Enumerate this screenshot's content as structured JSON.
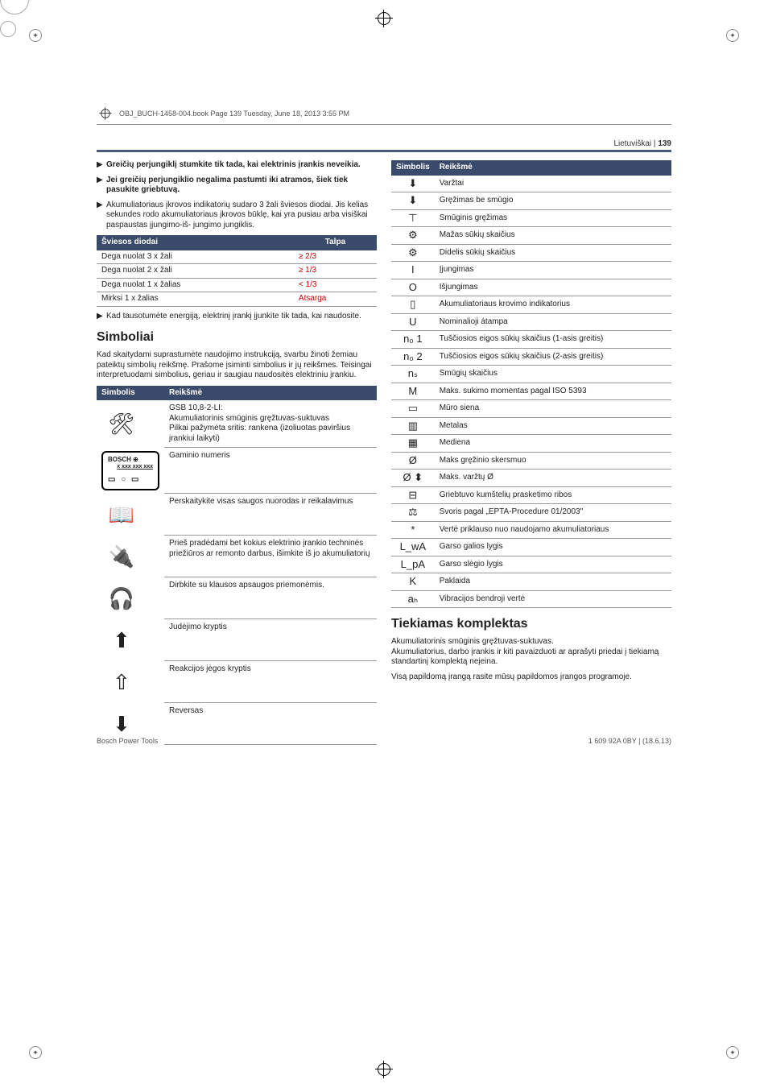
{
  "objLine": "OBJ_BUCH-1458-004.book  Page 139  Tuesday, June 18, 2013  3:55 PM",
  "header": {
    "lang": "Lietuviškai",
    "page": "139"
  },
  "left": {
    "bullets": [
      "Greičių perjungiklį stumkite tik tada, kai elektrinis įrankis neveikia.",
      "Jei greičių perjungiklio negalima pastumti iki atramos, šiek tiek pasukite griebtuvą."
    ],
    "par1": "Akumuliatoriaus įkrovos indikatorių sudaro 3 žali šviesos diodai. Jis kelias sekundes rodo akumuliatoriaus įkrovos būklę, kai yra pusiau arba visiškai paspaustas įjungimo-iš- jungimo jungiklis.",
    "ledTable": {
      "h1": "Šviesos diodai",
      "h2": "Talpa",
      "rows": [
        [
          "Dega nuolat 3 x žali",
          "≥ 2/3"
        ],
        [
          "Dega nuolat 2 x žali",
          "≥ 1/3"
        ],
        [
          "Dega nuolat 1 x žalias",
          "< 1/3"
        ],
        [
          "Mirksi 1 x žalias",
          "Atsarga"
        ]
      ]
    },
    "par2": "Kad tausotumėte energiją, elektrinį įrankį įjunkite tik tada, kai naudosite.",
    "h2": "Simboliai",
    "par3": "Kad skaitydami suprastumėte naudojimo instrukciją, svarbu žinoti žemiau pateiktų simbolių reikšmę. Prašome įsiminti simbolius ir jų reikšmes. Teisingai interpretuodami simbolius, geriau ir saugiau naudositės elektriniu įrankiu.",
    "symTable": {
      "h1": "Simbolis",
      "h2": "Reikšmė",
      "rows": [
        {
          "iconType": "drill",
          "text": "GSB 10,8-2-LI:\nAkumuliatorinis smūginis gręžtuvas-suktuvas\nPilkai pažymėta sritis: rankena (izoliuotas paviršius įrankiui laikyti)"
        },
        {
          "iconType": "bosch",
          "text": "Gaminio numeris"
        },
        {
          "iconType": "manual",
          "text": "Perskaitykite visas saugos nuorodas ir reikalavimus"
        },
        {
          "iconType": "plug",
          "text": "Prieš pradėdami bet kokius elektrinio įrankio techninės priežiūros ar remonto darbus, išimkite iš jo akumuliatorių"
        },
        {
          "iconType": "ear",
          "text": "Dirbkite su klausos apsaugos priemonėmis."
        },
        {
          "iconType": "arrow-up",
          "text": "Judėjimo kryptis"
        },
        {
          "iconType": "arrow-down",
          "text": "Reakcijos jėgos kryptis"
        },
        {
          "iconType": "y-arrow",
          "text": "Reversas"
        }
      ]
    }
  },
  "right": {
    "symTable": {
      "h1": "Simbolis",
      "h2": "Reikšmė",
      "rows": [
        {
          "icon": "⬇",
          "text": "Varžtai"
        },
        {
          "icon": "⬇",
          "text": "Gręžimas be smūgio"
        },
        {
          "icon": "⊤",
          "text": "Smūginis gręžimas"
        },
        {
          "icon": "⚙",
          "text": "Mažas sūkių skaičius"
        },
        {
          "icon": "⚙",
          "text": "Didelis sūkių skaičius"
        },
        {
          "icon": "I",
          "text": "Įjungimas"
        },
        {
          "icon": "O",
          "text": "Išjungimas"
        },
        {
          "icon": "▯",
          "text": "Akumuliatoriaus krovimo indikatorius"
        },
        {
          "icon": "U",
          "text": "Nominalioji átampa"
        },
        {
          "icon": "n₀ 1",
          "text": "Tuščiosios eigos sūkių skaičius (1-asis greitis)"
        },
        {
          "icon": "n₀ 2",
          "text": "Tuščiosios eigos sūkių skaičius (2-asis greitis)"
        },
        {
          "icon": "nₛ",
          "text": "Smūgių skaičius"
        },
        {
          "icon": "M",
          "text": "Maks. sukimo momentas pagal ISO 5393"
        },
        {
          "icon": "▭",
          "text": "Mūro siena"
        },
        {
          "icon": "▥",
          "text": "Metalas"
        },
        {
          "icon": "▦",
          "text": "Mediena"
        },
        {
          "icon": "Ø",
          "text": "Maks gręžinio skersmuo"
        },
        {
          "icon": "Ø ⬍",
          "text": "Maks. varžtų Ø"
        },
        {
          "icon": "⊟",
          "text": "Griebtuvo kumštelių prasketimo ribos"
        },
        {
          "icon": "⚖",
          "text": "Svoris pagal „EPTA-Procedure 01/2003\""
        },
        {
          "icon": "*",
          "text": "Vertė priklauso nuo naudojamo akumuliatoriaus"
        },
        {
          "icon": "L_wA",
          "text": "Garso galios lygis"
        },
        {
          "icon": "L_pA",
          "text": "Garso slėgio lygis"
        },
        {
          "icon": "K",
          "text": "Paklaida"
        },
        {
          "icon": "aₕ",
          "text": "Vibracijos bendroji vertė"
        }
      ]
    },
    "h2": "Tiekiamas komplektas",
    "par1": "Akumuliatorinis smūginis gręžtuvas-suktuvas.\nAkumuliatorius, darbo įrankis ir kiti pavaizduoti ar aprašyti priedai į tiekiamą standartinį komplektą neįeina.",
    "par2": "Visą papildomą įrangą rasite mūsų papildomos įrangos programoje."
  },
  "footer": {
    "left": "Bosch Power Tools",
    "right": "1 609 92A 0BY | (18.6.13)"
  },
  "bosch": {
    "brand": "BOSCH",
    "num": "x xxx xxx xxx"
  }
}
